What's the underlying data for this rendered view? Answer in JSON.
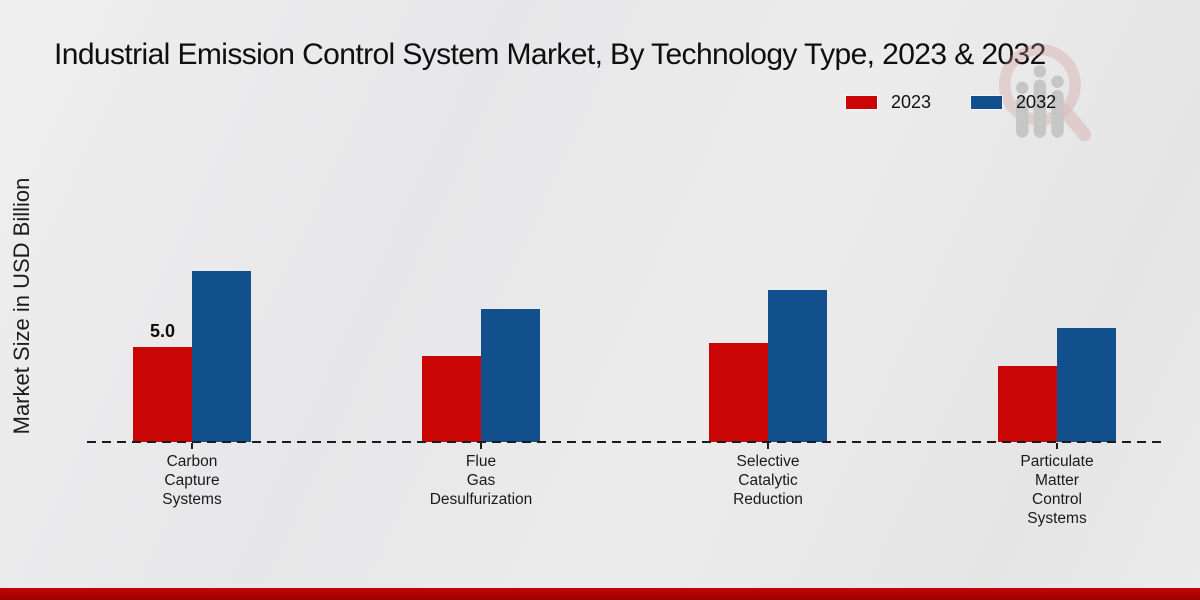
{
  "title": "Industrial Emission Control System Market, By Technology Type, 2023 & 2032",
  "y_axis_label": "Market Size in USD Billion",
  "legend": [
    {
      "label": "2023",
      "color": "#c90505"
    },
    {
      "label": "2032",
      "color": "#11508c"
    }
  ],
  "colors": {
    "series_2023": "#c90505",
    "series_2032": "#11508c",
    "footer_bar": "#b00303",
    "axis": "#1c1c1c",
    "background": "#e9e9e9"
  },
  "watermark_icon": "mrfr-magnifier-bars-logo",
  "chart_data": {
    "type": "bar",
    "categories": [
      "Carbon Capture Systems",
      "Flue Gas Desulfurization",
      "Selective Catalytic Reduction",
      "Particulate Matter Control Systems"
    ],
    "series": [
      {
        "name": "2023",
        "color": "#c90505",
        "values": [
          5.0,
          4.5,
          5.2,
          4.0
        ]
      },
      {
        "name": "2032",
        "color": "#11508c",
        "values": [
          9.0,
          7.0,
          8.0,
          6.0
        ]
      }
    ],
    "bar_labels": [
      {
        "series_index": 0,
        "category_index": 0,
        "text": "5.0"
      }
    ],
    "title": "Industrial Emission Control System Market, By Technology Type, 2023 & 2032",
    "xlabel": "",
    "ylabel": "Market Size in USD Billion",
    "ylim": [
      0,
      10
    ],
    "grid": false,
    "y_ticks_visible": false,
    "baseline_style": "dashed",
    "legend_position": "top-right"
  }
}
